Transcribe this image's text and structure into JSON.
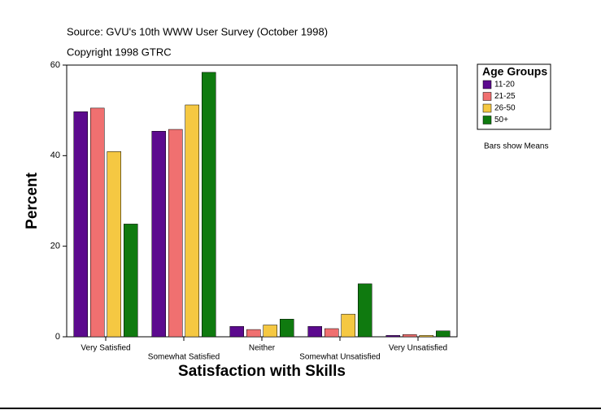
{
  "chart_data": {
    "type": "bar",
    "source": "Source: GVU's 10th WWW User Survey (October 1998)",
    "copyright": "Copyright 1998 GTRC",
    "note": "Bars show Means",
    "x_label": "Satisfaction with Skills",
    "y_label": "Percent",
    "legend_title": "Age Groups",
    "legend_position": "right",
    "categories": [
      "Very Satisfied",
      "Somewhat Satisfied",
      "Neither",
      "Somewhat Unsatisfied",
      "Very Unsatisfied"
    ],
    "series": [
      {
        "name": "11-20",
        "color": "#5c0a8e",
        "values": [
          49.7,
          45.4,
          2.3,
          2.3,
          0.3
        ]
      },
      {
        "name": "21-25",
        "color": "#f07070",
        "values": [
          50.5,
          45.8,
          1.6,
          1.8,
          0.5
        ]
      },
      {
        "name": "26-50",
        "color": "#f5c842",
        "values": [
          40.9,
          51.2,
          2.6,
          5.0,
          0.3
        ]
      },
      {
        "name": "50+",
        "color": "#0f7a0f",
        "values": [
          24.9,
          58.4,
          3.9,
          11.7,
          1.3
        ]
      }
    ],
    "ylim": [
      0,
      60
    ],
    "yticks": [
      0,
      20,
      40,
      60
    ],
    "grid": false
  }
}
